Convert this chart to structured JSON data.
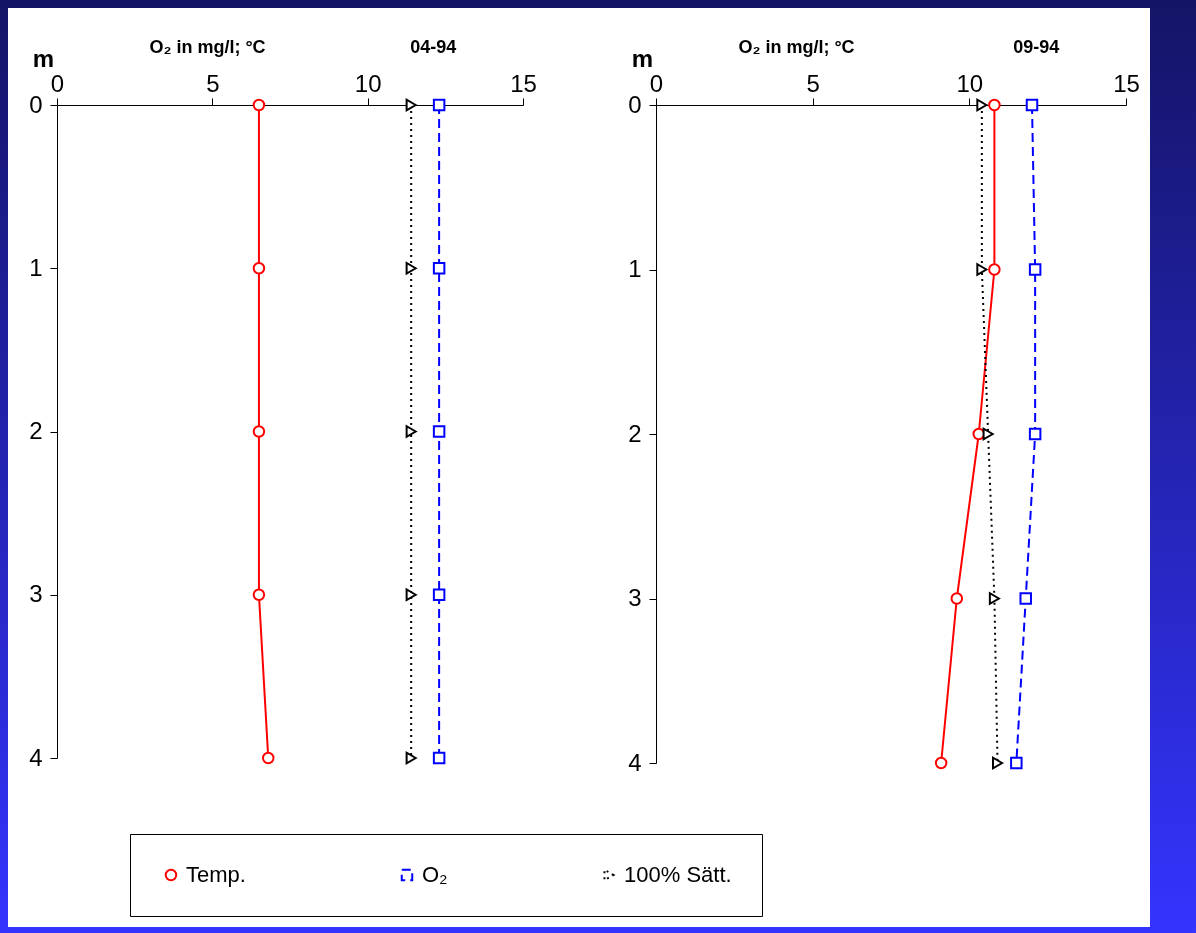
{
  "chart_data": [
    {
      "type": "line",
      "title": "04-94",
      "xlabel": "O₂ in mg/l;  °C",
      "ylabel": "m",
      "xlim": [
        0,
        15
      ],
      "xticks": [
        0,
        5,
        10,
        15
      ],
      "ylim": [
        4,
        0
      ],
      "yticks": [
        0,
        1,
        2,
        3,
        4
      ],
      "legend": "bottom",
      "series": [
        {
          "name": "Temp.",
          "color": "#ff0000",
          "marker": "circle",
          "line_style": "solid",
          "x": [
            6.5,
            6.5,
            6.5,
            6.5,
            6.8
          ],
          "values": [
            0,
            1,
            2,
            3,
            4
          ]
        },
        {
          "name": "O₂",
          "color": "#0000ff",
          "marker": "square",
          "line_style": "dashed",
          "x": [
            12.3,
            12.3,
            12.3,
            12.3,
            12.3
          ],
          "values": [
            0,
            1,
            2,
            3,
            4
          ]
        },
        {
          "name": "100% Sätt.",
          "color": "#000000",
          "marker": "triangle",
          "line_style": "dotted",
          "x": [
            11.4,
            11.4,
            11.4,
            11.4,
            11.4
          ],
          "values": [
            0,
            1,
            2,
            3,
            4
          ]
        }
      ]
    },
    {
      "type": "line",
      "title": "09-94",
      "xlabel": "O₂ in mg/l;  °C",
      "ylabel": "m",
      "xlim": [
        0,
        15
      ],
      "xticks": [
        0,
        5,
        10,
        15
      ],
      "ylim": [
        4,
        0
      ],
      "yticks": [
        0,
        1,
        2,
        3,
        4
      ],
      "legend": "bottom",
      "series": [
        {
          "name": "Temp.",
          "color": "#ff0000",
          "marker": "circle",
          "line_style": "solid",
          "x": [
            10.8,
            10.8,
            10.3,
            9.6,
            9.1
          ],
          "values": [
            0,
            1,
            2,
            3,
            4
          ]
        },
        {
          "name": "O₂",
          "color": "#0000ff",
          "marker": "square",
          "line_style": "dashed",
          "x": [
            12.0,
            12.1,
            12.1,
            11.8,
            11.5
          ],
          "values": [
            0,
            1,
            2,
            3,
            4
          ]
        },
        {
          "name": "100% Sätt.",
          "color": "#000000",
          "marker": "triangle",
          "line_style": "dotted",
          "x": [
            10.4,
            10.4,
            10.6,
            10.8,
            10.9
          ],
          "values": [
            0,
            1,
            2,
            3,
            4
          ]
        }
      ]
    }
  ]
}
